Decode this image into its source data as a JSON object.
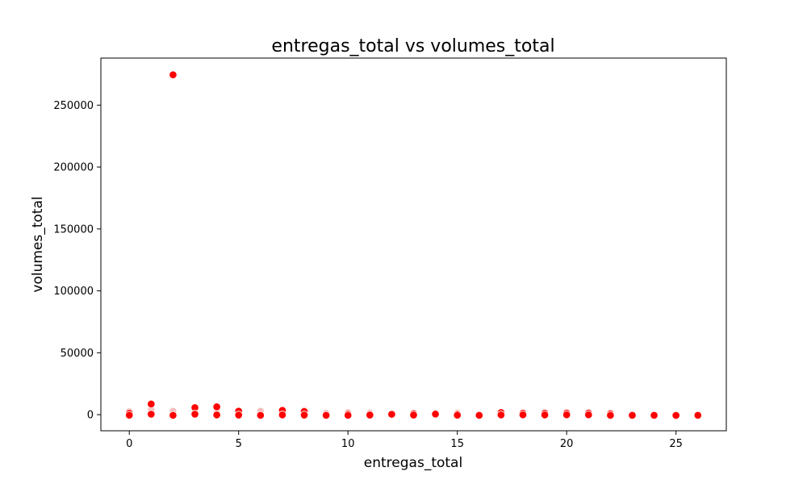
{
  "chart_data": {
    "type": "scatter",
    "title": "entregas_total vs volumes_total",
    "xlabel": "entregas_total",
    "ylabel": "volumes_total",
    "xlim": [
      -1.3,
      27.3
    ],
    "ylim": [
      -13000,
      288000
    ],
    "x_ticks": [
      0,
      5,
      10,
      15,
      20,
      25
    ],
    "y_ticks": [
      0,
      50000,
      100000,
      150000,
      200000,
      250000
    ],
    "grid": false,
    "point_color": "#ff0000",
    "faint_point_color": "#f4bcbc",
    "points": [
      {
        "x": 0,
        "y": 1200
      },
      {
        "x": 0,
        "y": -400
      },
      {
        "x": 1,
        "y": 8600
      },
      {
        "x": 1,
        "y": 400
      },
      {
        "x": 2,
        "y": 274500
      },
      {
        "x": 2,
        "y": -500
      },
      {
        "x": 3,
        "y": 5700
      },
      {
        "x": 3,
        "y": 400
      },
      {
        "x": 4,
        "y": 6300
      },
      {
        "x": 4,
        "y": -200
      },
      {
        "x": 5,
        "y": 2800
      },
      {
        "x": 5,
        "y": -300
      },
      {
        "x": 6,
        "y": -500
      },
      {
        "x": 7,
        "y": 3500
      },
      {
        "x": 7,
        "y": -200
      },
      {
        "x": 8,
        "y": 2600
      },
      {
        "x": 8,
        "y": -300
      },
      {
        "x": 9,
        "y": -500
      },
      {
        "x": 10,
        "y": 600
      },
      {
        "x": 10,
        "y": -500
      },
      {
        "x": 11,
        "y": -300
      },
      {
        "x": 12,
        "y": 300
      },
      {
        "x": 13,
        "y": 900
      },
      {
        "x": 13,
        "y": -300
      },
      {
        "x": 14,
        "y": 500
      },
      {
        "x": 15,
        "y": 500
      },
      {
        "x": 15,
        "y": -400
      },
      {
        "x": 16,
        "y": -500
      },
      {
        "x": 17,
        "y": 1700
      },
      {
        "x": 17,
        "y": -200
      },
      {
        "x": 18,
        "y": 1200
      },
      {
        "x": 18,
        "y": -100
      },
      {
        "x": 19,
        "y": 1200
      },
      {
        "x": 19,
        "y": -200
      },
      {
        "x": 20,
        "y": 1300
      },
      {
        "x": 20,
        "y": -100
      },
      {
        "x": 21,
        "y": 1300
      },
      {
        "x": 21,
        "y": -100
      },
      {
        "x": 22,
        "y": 800
      },
      {
        "x": 22,
        "y": -500
      },
      {
        "x": 23,
        "y": -500
      },
      {
        "x": 24,
        "y": -500
      },
      {
        "x": 25,
        "y": -600
      },
      {
        "x": 26,
        "y": -500
      }
    ],
    "faint_points": [
      {
        "x": 0,
        "y": 2600
      },
      {
        "x": 1,
        "y": 4200
      },
      {
        "x": 2,
        "y": 2900
      },
      {
        "x": 3,
        "y": 2500
      },
      {
        "x": 4,
        "y": 2600
      },
      {
        "x": 5,
        "y": 1800
      },
      {
        "x": 6,
        "y": 2900
      },
      {
        "x": 7,
        "y": 1500
      },
      {
        "x": 8,
        "y": 3800
      },
      {
        "x": 9,
        "y": 1300
      },
      {
        "x": 10,
        "y": 1900
      },
      {
        "x": 11,
        "y": 1600
      },
      {
        "x": 13,
        "y": 1500
      },
      {
        "x": 15,
        "y": 1700
      },
      {
        "x": 17,
        "y": 800
      },
      {
        "x": 19,
        "y": 400
      },
      {
        "x": 20,
        "y": 300
      },
      {
        "x": 21,
        "y": 400
      },
      {
        "x": 22,
        "y": 1500
      }
    ]
  }
}
